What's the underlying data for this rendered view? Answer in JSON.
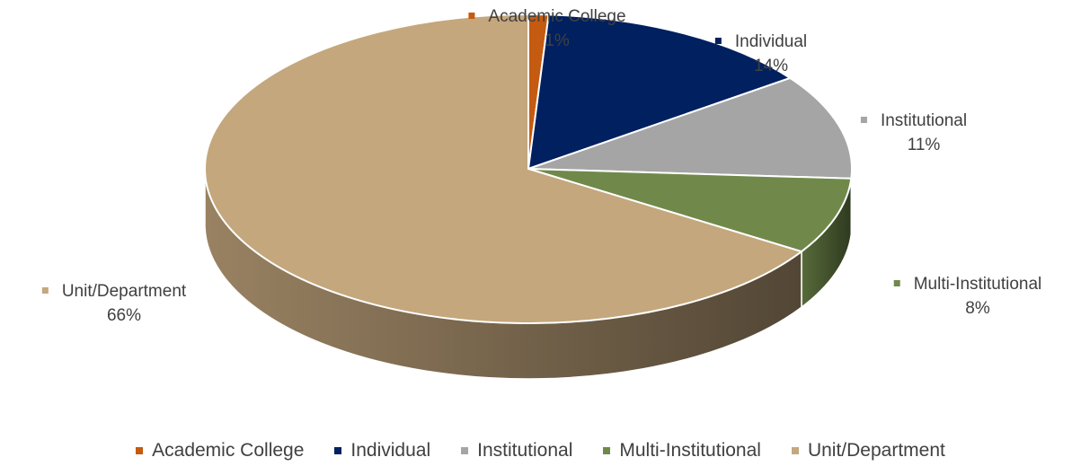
{
  "chart_data": {
    "type": "pie",
    "style": "3d",
    "categories": [
      "Academic College",
      "Individual",
      "Institutional",
      "Multi-Institutional",
      "Unit/Department"
    ],
    "values": [
      1,
      14,
      11,
      8,
      66
    ],
    "labels": [
      "1%",
      "14%",
      "11%",
      "8%",
      "66%"
    ],
    "colors": [
      "#c55a11",
      "#002060",
      "#a5a5a5",
      "#70894a",
      "#c4a77d"
    ],
    "legend_position": "bottom"
  }
}
